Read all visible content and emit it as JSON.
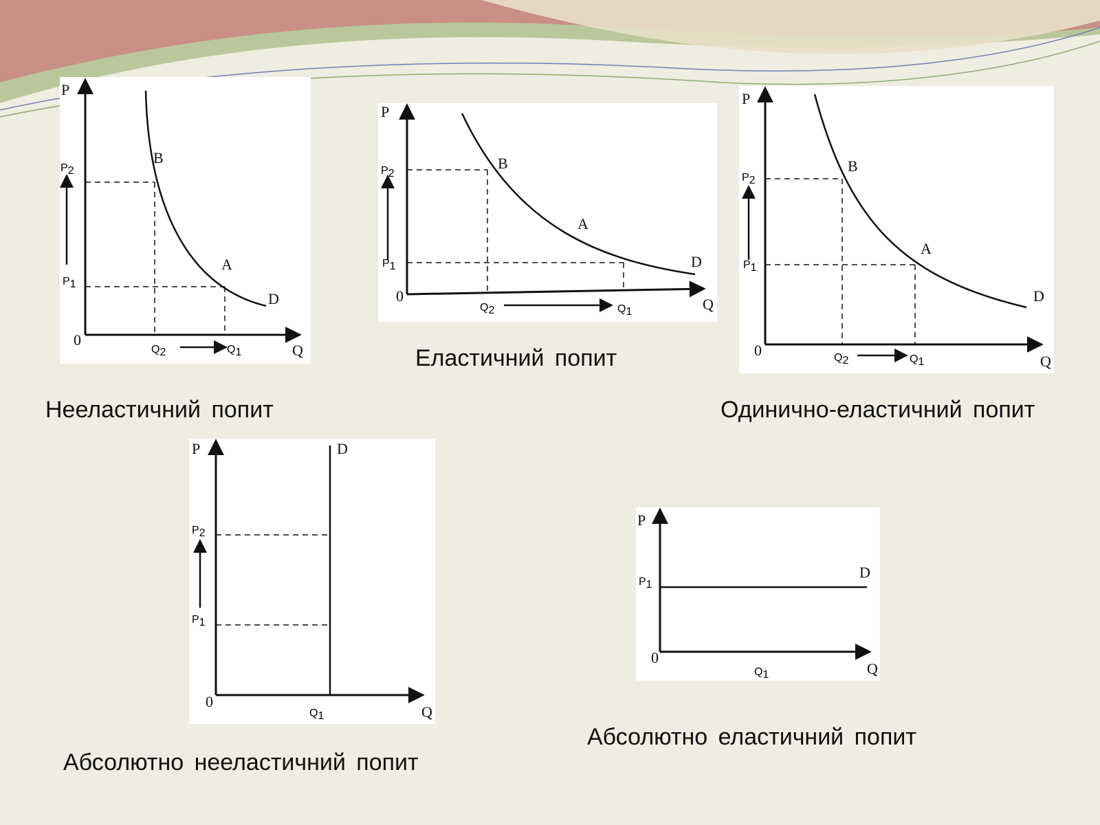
{
  "slide": {
    "colors": {
      "background": "#efece1",
      "wave_rose": "#c98f86",
      "wave_green": "#b9c79a",
      "line": "#111111",
      "panel": "#ffffff"
    }
  },
  "diagrams": [
    {
      "id": "inelastic",
      "caption": "Нееластичний попит",
      "axis": {
        "price": "P",
        "quantity": "Q",
        "origin": "0"
      },
      "curve_label": "D",
      "points": {
        "b": "B",
        "a": "A"
      },
      "price_levels": {
        "high_main": "P",
        "high_sub": "2",
        "low_main": "P",
        "low_sub": "1"
      },
      "quantity_levels": {
        "left_main": "Q",
        "left_sub": "2",
        "right_main": "Q",
        "right_sub": "1"
      }
    },
    {
      "id": "elastic",
      "caption": "Еластичний попит",
      "axis": {
        "price": "P",
        "quantity": "Q",
        "origin": "0"
      },
      "curve_label": "D",
      "points": {
        "b": "B",
        "a": "A"
      },
      "price_levels": {
        "high_main": "P",
        "high_sub": "2",
        "low_main": "P",
        "low_sub": "1"
      },
      "quantity_levels": {
        "left_main": "Q",
        "left_sub": "2",
        "right_main": "Q",
        "right_sub": "1"
      }
    },
    {
      "id": "unit-elastic",
      "caption": "Одинично-еластичний попит",
      "axis": {
        "price": "P",
        "quantity": "Q",
        "origin": "0"
      },
      "curve_label": "D",
      "points": {
        "b": "B",
        "a": "A"
      },
      "price_levels": {
        "high_main": "P",
        "high_sub": "2",
        "low_main": "P",
        "low_sub": "1"
      },
      "quantity_levels": {
        "left_main": "Q",
        "left_sub": "2",
        "right_main": "Q",
        "right_sub": "1"
      }
    },
    {
      "id": "perfectly-inelastic",
      "caption": "Абсолютно нееластичний попит",
      "axis": {
        "price": "P",
        "quantity": "Q",
        "origin": "0"
      },
      "curve_label": "D",
      "price_levels": {
        "high_main": "P",
        "high_sub": "2",
        "low_main": "P",
        "low_sub": "1"
      },
      "quantity_levels": {
        "only_main": "Q",
        "only_sub": "1"
      }
    },
    {
      "id": "perfectly-elastic",
      "caption": "Абсолютно еластичний попит",
      "axis": {
        "price": "P",
        "quantity": "Q",
        "origin": "0"
      },
      "curve_label": "D",
      "price_levels": {
        "only_main": "P",
        "only_sub": "1"
      },
      "quantity_levels": {
        "only_main": "Q",
        "only_sub": "1"
      }
    }
  ]
}
